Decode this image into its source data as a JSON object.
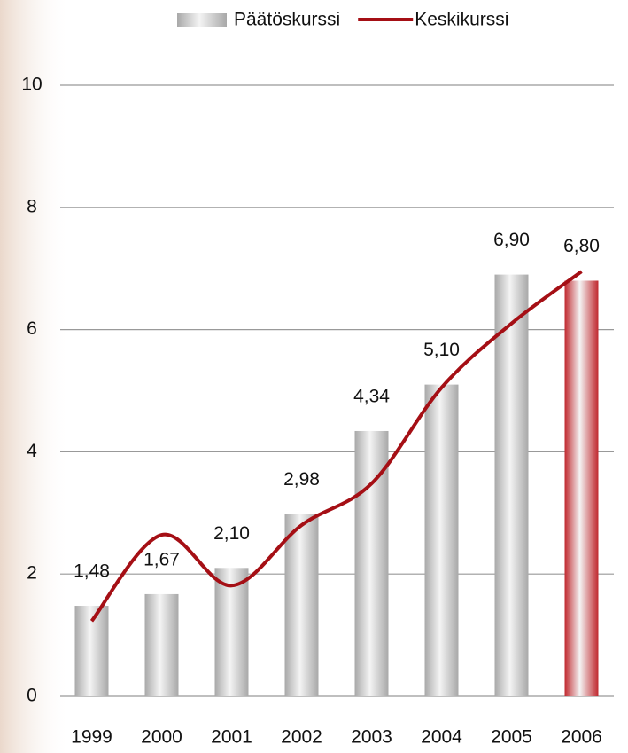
{
  "chart_data": {
    "type": "bar-line",
    "categories": [
      "1999",
      "2000",
      "2001",
      "2002",
      "2003",
      "2004",
      "2005",
      "2006"
    ],
    "series": [
      {
        "name": "Päätöskurssi",
        "type": "bar",
        "color": "#a8a8a8",
        "colors": [
          "#a8a8a8",
          "#a8a8a8",
          "#a8a8a8",
          "#a8a8a8",
          "#a8a8a8",
          "#a8a8a8",
          "#a8a8a8",
          "#c0282e"
        ],
        "values": [
          1.48,
          1.67,
          2.1,
          2.98,
          4.34,
          5.1,
          6.9,
          6.8
        ],
        "value_labels": [
          "1,48",
          "1,67",
          "2,10",
          "2,98",
          "4,34",
          "5,10",
          "6,90",
          "6,80"
        ]
      },
      {
        "name": "Keskikurssi",
        "type": "line",
        "color": "#a50f15",
        "values": [
          1.23,
          2.64,
          1.81,
          2.8,
          3.48,
          5.05,
          6.1,
          6.95
        ]
      }
    ],
    "ylim": [
      0,
      10
    ],
    "yticks": [
      0,
      2,
      4,
      6,
      8,
      10
    ],
    "grid": true,
    "legend": "top-right"
  }
}
